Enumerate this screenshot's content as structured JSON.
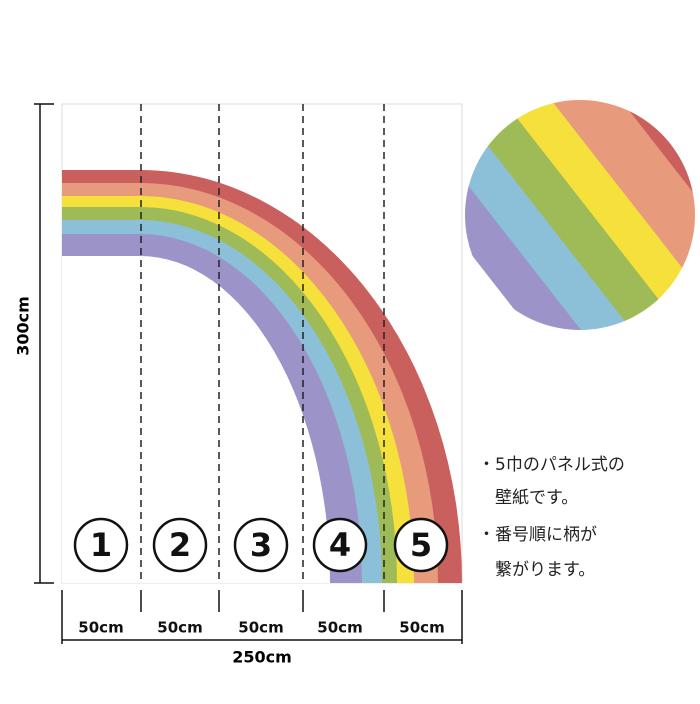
{
  "dimensions": {
    "height": "300cm",
    "total_width": "250cm",
    "panel_widths": [
      "50cm",
      "50cm",
      "50cm",
      "50cm",
      "50cm"
    ]
  },
  "panels": [
    "1",
    "2",
    "3",
    "4",
    "5"
  ],
  "notes": [
    "・5巾のパネル式の",
    "壁紙です。",
    "・番号順に柄が",
    "繋がります。"
  ]
}
